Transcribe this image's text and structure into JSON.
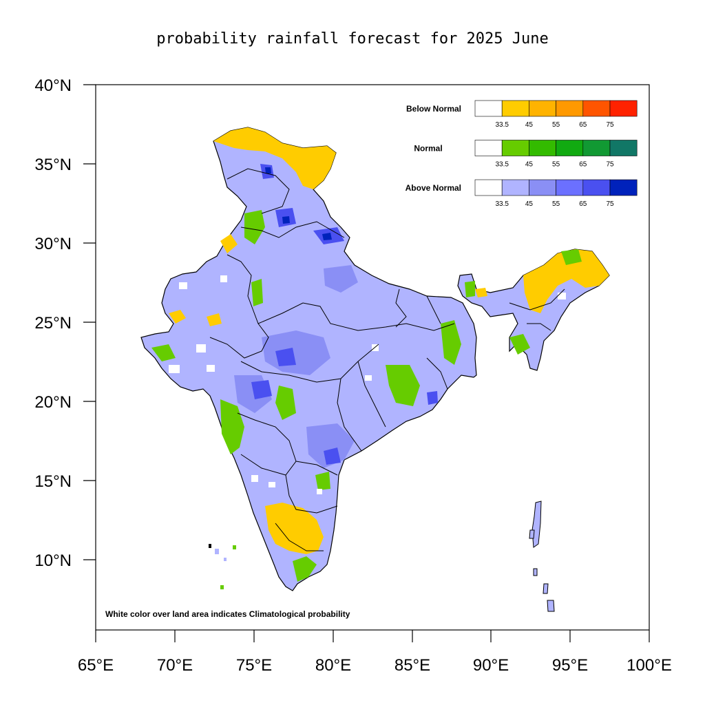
{
  "title": "probability rainfall forecast for 2025 June",
  "axes": {
    "lat_labels": [
      "40°N",
      "35°N",
      "30°N",
      "25°N",
      "20°N",
      "15°N",
      "10°N"
    ],
    "lon_labels": [
      "65°E",
      "70°E",
      "75°E",
      "80°E",
      "85°E",
      "90°E",
      "95°E",
      "100°E"
    ],
    "lat_range": [
      5,
      40
    ],
    "lon_range": [
      65,
      100
    ]
  },
  "legend": [
    {
      "name": "Below Normal",
      "colors": [
        "#ffffff",
        "#ffcc00",
        "#ffb300",
        "#ff9900",
        "#ff5500",
        "#ff2200"
      ],
      "ticks": [
        "33.5",
        "45",
        "55",
        "65",
        "75"
      ]
    },
    {
      "name": "Normal",
      "colors": [
        "#ffffff",
        "#66cc00",
        "#33bb00",
        "#11aa11",
        "#119933",
        "#117766"
      ],
      "ticks": [
        "33.5",
        "45",
        "55",
        "65",
        "75"
      ]
    },
    {
      "name": "Above Normal",
      "colors": [
        "#ffffff",
        "#b0b4ff",
        "#8a8ff5",
        "#6b70ff",
        "#4a50f0",
        "#0022bb"
      ],
      "ticks": [
        "33.5",
        "45",
        "55",
        "65",
        "75"
      ]
    }
  ],
  "note": "White color over land area indicates Climatological probability",
  "colors": {
    "above_light": "#b0b4ff",
    "above_mid": "#8a8ff5",
    "above_dark": "#4a50f0",
    "above_darkest": "#0022bb",
    "normal": "#66cc00",
    "below": "#ffcc00",
    "border": "#000000"
  }
}
